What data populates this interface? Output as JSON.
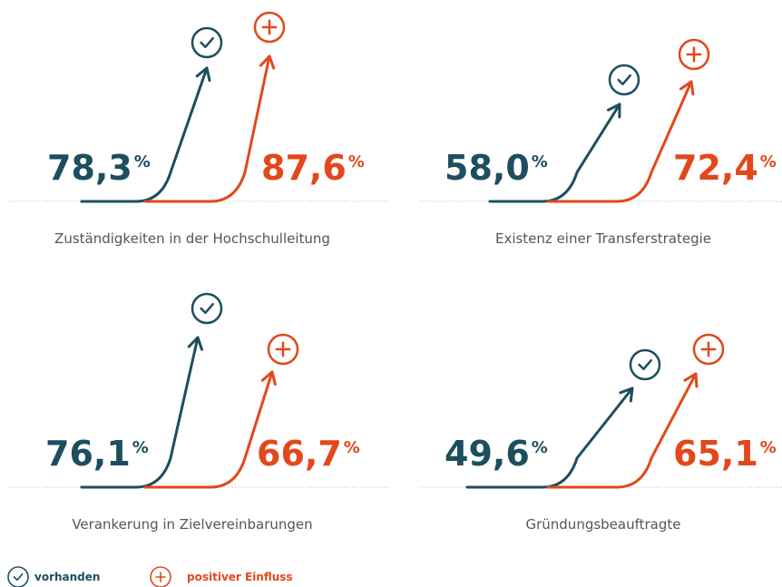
{
  "panels": [
    {
      "label": "Zuständigkeiten in der Hochschulleitung",
      "vorhanden": "78,3",
      "einfluss": "87,6"
    },
    {
      "label": "Existenz einer Transferstrategie",
      "vorhanden": "58,0",
      "einfluss": "72,4"
    },
    {
      "label": "Verankerung in Zielvereinbarungen",
      "vorhanden": "76,1",
      "einfluss": "66,7"
    },
    {
      "label": "Gründungsbeauftragte",
      "vorhanden": "49,6",
      "einfluss": "65,1"
    }
  ],
  "percent_sign": "%",
  "legend": {
    "vorhanden": "vorhanden",
    "einfluss": "positiver Einfluss"
  }
}
